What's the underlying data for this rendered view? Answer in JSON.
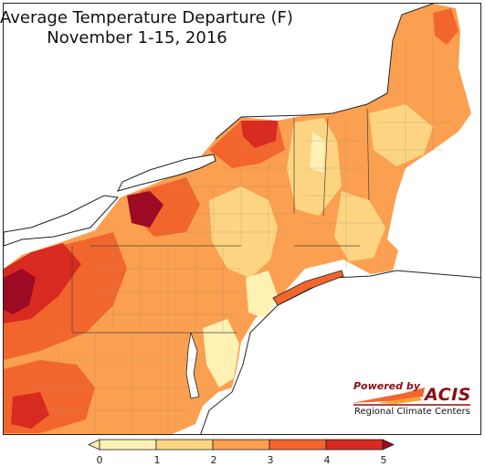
{
  "title": {
    "line1": "Average Temperature Departure (F)",
    "line2": "November 1-15, 2016"
  },
  "logo": {
    "powered_by": "Powered by",
    "acis": "ACIS",
    "subtitle": "Regional Climate Centers"
  },
  "legend": {
    "ticks": [
      "0",
      "1",
      "2",
      "3",
      "4",
      "5"
    ],
    "colors": [
      "#fff0b3",
      "#fdd582",
      "#fba050",
      "#f2662e",
      "#d72a20",
      "#9d0a23"
    ]
  },
  "palette": {
    "water": "#ffffff",
    "land_outside": "#ffffff",
    "outline": "#222222",
    "county": "#9a8a70"
  }
}
